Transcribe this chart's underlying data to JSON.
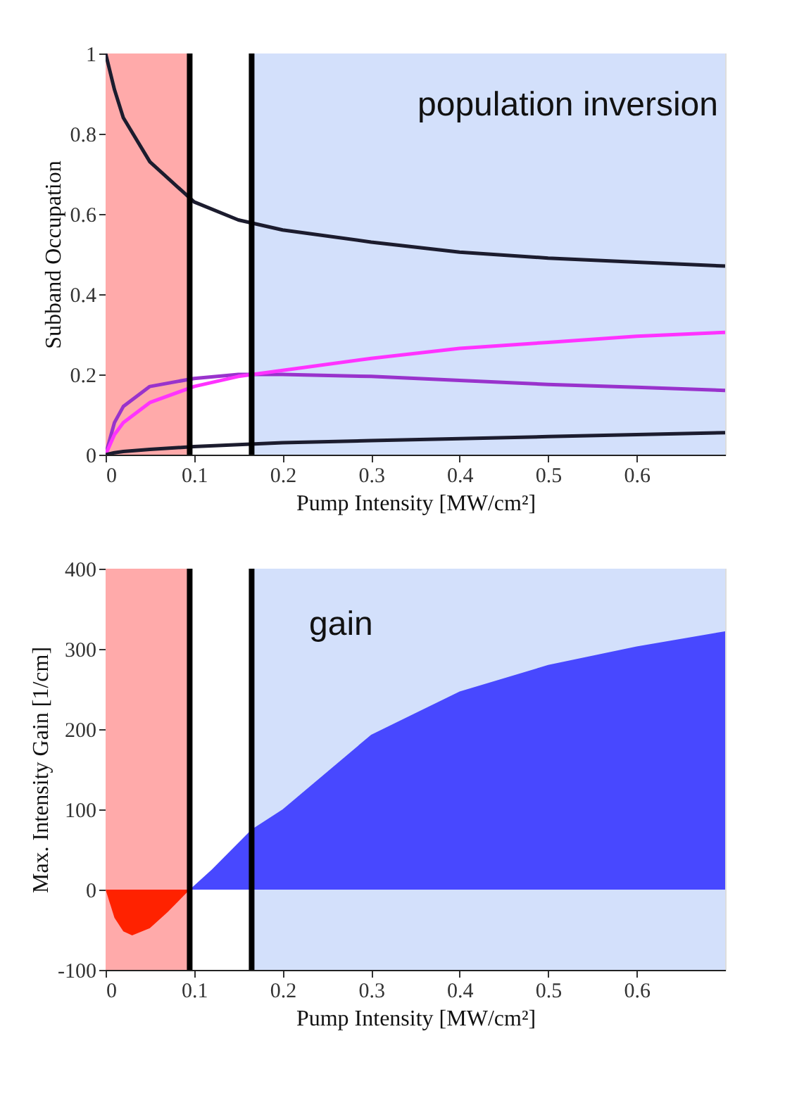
{
  "chart_data": [
    {
      "type": "line",
      "ylabel": "Subband Occupation",
      "xlabel": "Pump Intensity [MW/cm²]",
      "annotations": [
        "population inversion"
      ],
      "xlim": [
        0,
        0.7
      ],
      "xticks": [
        0,
        0.1,
        0.2,
        0.3,
        0.4,
        0.5,
        0.6
      ],
      "ylim": [
        0,
        1
      ],
      "yticks": [
        0,
        0.2,
        0.4,
        0.6,
        0.8,
        1
      ],
      "bands": [
        {
          "axis": "x",
          "from": 0,
          "to": 0.095,
          "color": "#ffaaaa"
        },
        {
          "axis": "x",
          "from": 0.165,
          "to": 0.7,
          "color": "#d3e0fb"
        },
        {
          "axis": "x",
          "from": 0.095,
          "to": 0.165,
          "color": "#ffffff"
        }
      ],
      "ref_lines": [
        {
          "axis": "x",
          "value": 0.095,
          "color": "#000000"
        },
        {
          "axis": "x",
          "value": 0.165,
          "color": "#000000"
        }
      ],
      "x": [
        0,
        0.01,
        0.02,
        0.05,
        0.1,
        0.15,
        0.2,
        0.3,
        0.4,
        0.5,
        0.6,
        0.7
      ],
      "series": [
        {
          "color": "#1c1c2e",
          "values": [
            1,
            0.91,
            0.84,
            0.73,
            0.63,
            0.585,
            0.56,
            0.53,
            0.505,
            0.49,
            0.48,
            0.47
          ]
        },
        {
          "color": "#9933cc",
          "values": [
            0,
            0.08,
            0.12,
            0.17,
            0.19,
            0.2,
            0.2,
            0.195,
            0.185,
            0.175,
            0.168,
            0.16
          ]
        },
        {
          "color": "#ff33ff",
          "values": [
            0,
            0.05,
            0.08,
            0.13,
            0.17,
            0.195,
            0.21,
            0.24,
            0.265,
            0.28,
            0.295,
            0.305
          ]
        },
        {
          "color": "#1c1c2e",
          "values": [
            0,
            0.005,
            0.008,
            0.013,
            0.02,
            0.025,
            0.03,
            0.035,
            0.04,
            0.045,
            0.05,
            0.055
          ]
        }
      ]
    },
    {
      "type": "area",
      "ylabel": "Max. Intensity Gain [1/cm]",
      "xlabel": "Pump Intensity    [MW/cm²]",
      "annotations": [
        "gain"
      ],
      "xlim": [
        0,
        0.7
      ],
      "xticks": [
        0,
        0.1,
        0.2,
        0.3,
        0.4,
        0.5,
        0.6
      ],
      "ylim": [
        -100,
        400
      ],
      "yticks": [
        -100,
        0,
        100,
        200,
        300,
        400
      ],
      "bands": [
        {
          "axis": "x",
          "from": 0,
          "to": 0.095,
          "color": "#ffaaaa"
        },
        {
          "axis": "x",
          "from": 0.165,
          "to": 0.7,
          "color": "#d3e0fb"
        },
        {
          "axis": "x",
          "from": 0.095,
          "to": 0.165,
          "color": "#ffffff"
        }
      ],
      "ref_lines": [
        {
          "axis": "x",
          "value": 0.095,
          "color": "#000000"
        },
        {
          "axis": "x",
          "value": 0.165,
          "color": "#000000"
        }
      ],
      "series": [
        {
          "color": "#ff2200",
          "x": [
            0,
            0.01,
            0.02,
            0.03,
            0.05,
            0.07,
            0.095
          ],
          "values": [
            0,
            -35,
            -52,
            -57,
            -48,
            -28,
            0
          ]
        },
        {
          "color": "#4848ff",
          "x": [
            0.095,
            0.12,
            0.165,
            0.2,
            0.3,
            0.4,
            0.5,
            0.6,
            0.7
          ],
          "values": [
            0,
            25,
            75,
            100,
            193,
            247,
            280,
            303,
            322
          ]
        }
      ]
    }
  ]
}
